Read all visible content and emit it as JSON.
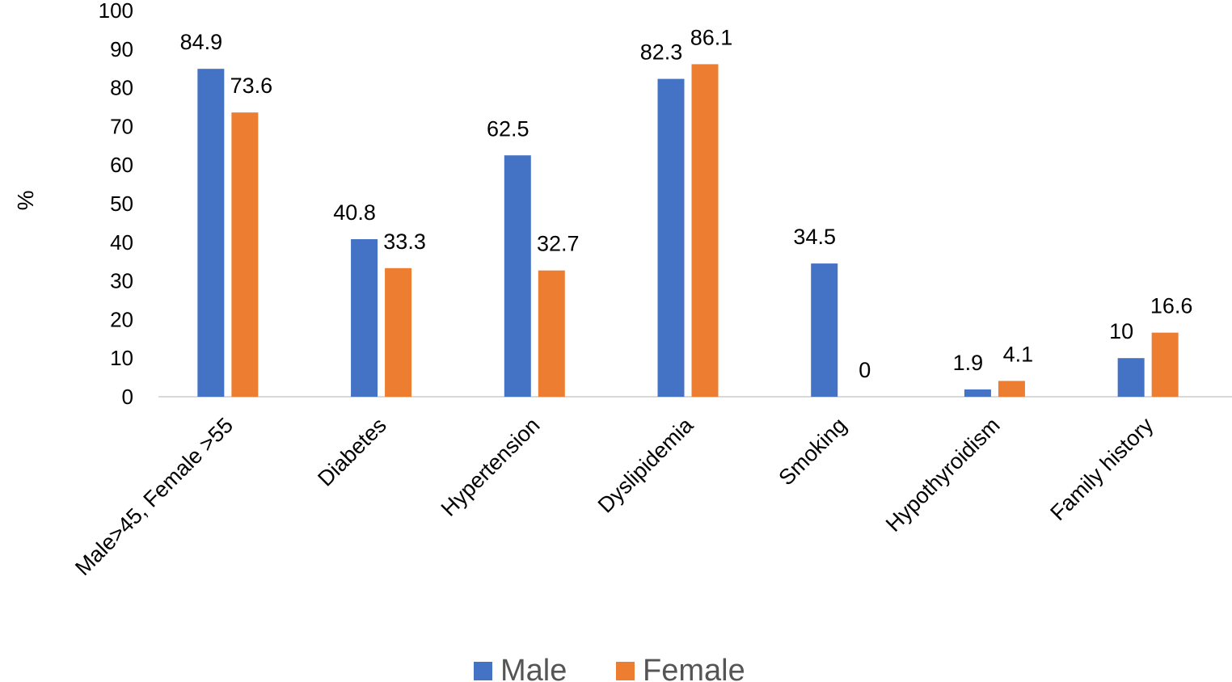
{
  "chart_data": {
    "type": "bar",
    "categories": [
      "Male>45, Female >55",
      "Diabetes",
      "Hypertension",
      "Dyslipidemia",
      "Smoking",
      "Hypothyroidism",
      "Family history"
    ],
    "series": [
      {
        "name": "Male",
        "color": "#4472C4",
        "values": [
          84.9,
          40.8,
          62.5,
          82.3,
          34.5,
          1.9,
          10
        ]
      },
      {
        "name": "Female",
        "color": "#ED7D31",
        "values": [
          73.6,
          33.3,
          32.7,
          86.1,
          0,
          4.1,
          16.6
        ]
      }
    ],
    "ylabel": "%",
    "ylim": [
      0,
      100
    ],
    "yticks": [
      0,
      10,
      20,
      30,
      40,
      50,
      60,
      70,
      80,
      90,
      100
    ],
    "grid": false,
    "legend": "bottom-center",
    "data_labels": true
  }
}
